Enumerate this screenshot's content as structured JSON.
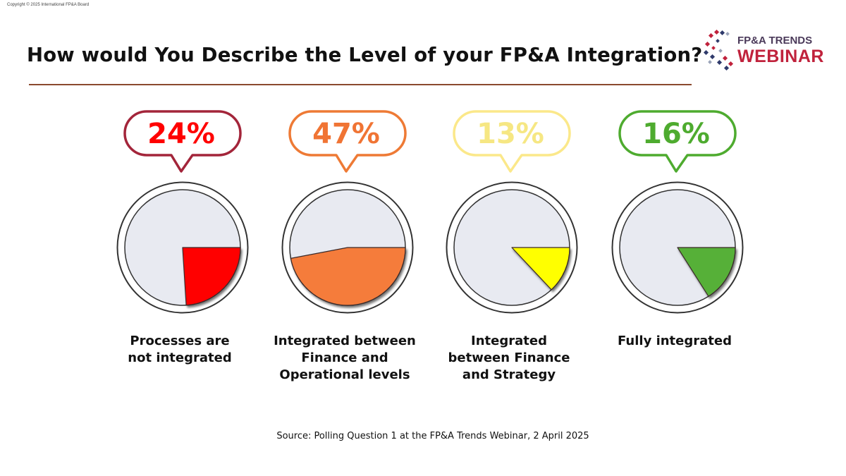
{
  "copyright": "Copyright © 2025 International FP&A Board",
  "title": "How would You Describe the Level of your FP&A Integration?",
  "logo": {
    "line1": "FP&A TRENDS",
    "line2": "WEBINAR"
  },
  "chart_data": {
    "type": "pie",
    "subtype": "small-multiples",
    "unit": "%",
    "items": [
      {
        "label": "Processes are not integrated",
        "value": 24,
        "value_label": "24%",
        "color": "#ff0000",
        "bubble_color": "#a3253a",
        "text_color": "#ff0000"
      },
      {
        "label": "Integrated between Finance and Operational levels",
        "value": 47,
        "value_label": "47%",
        "color": "#f57c3a",
        "bubble_color": "#ee7a35",
        "text_color": "#f07434"
      },
      {
        "label": "Integrated between Finance and Strategy",
        "value": 13,
        "value_label": "13%",
        "color": "#ffff00",
        "bubble_color": "#fbe88a",
        "text_color": "#f6e783"
      },
      {
        "label": "Fully integrated",
        "value": 16,
        "value_label": "16%",
        "color": "#56b037",
        "bubble_color": "#4eab2f",
        "text_color": "#4eab2f"
      }
    ]
  },
  "source": "Source: Polling Question 1 at the FP&A Trends Webinar, 2 April 2025"
}
